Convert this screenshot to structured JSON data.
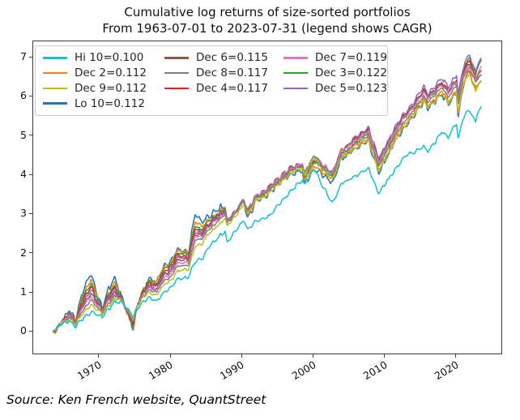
{
  "title": {
    "line1": "Cumulative log returns of size-sorted portfolios",
    "line2": "From 1963-07-01 to 2023-07-31 (legend shows CAGR)"
  },
  "source_note": "Source: Ken French website, QuantStreet",
  "axes": {
    "y_tick_labels": [
      "7",
      "6",
      "5",
      "4",
      "3",
      "2",
      "1",
      "0"
    ],
    "x_tick_labels": [
      "1970",
      "1980",
      "1990",
      "2000",
      "2010",
      "2020"
    ]
  },
  "legend": {
    "columns": [
      [
        {
          "key": "hi10",
          "label": "Hi 10=0.100"
        },
        {
          "key": "dec2",
          "label": "Dec 2=0.112"
        },
        {
          "key": "dec9",
          "label": "Dec 9=0.112"
        },
        {
          "key": "lo10",
          "label": "Lo 10=0.112"
        }
      ],
      [
        {
          "key": "dec6",
          "label": "Dec 6=0.115"
        },
        {
          "key": "dec8",
          "label": "Dec 8=0.117"
        },
        {
          "key": "dec4",
          "label": "Dec 4=0.117"
        }
      ],
      [
        {
          "key": "dec7",
          "label": "Dec 7=0.119"
        },
        {
          "key": "dec3",
          "label": "Dec 3=0.122"
        },
        {
          "key": "dec5",
          "label": "Dec 5=0.123"
        }
      ]
    ]
  },
  "chart_data": {
    "type": "line",
    "title": "Cumulative log returns of size-sorted portfolios",
    "subtitle": "From 1963-07-01 to 2023-07-31 (legend shows CAGR)",
    "xlabel": "",
    "ylabel": "",
    "x_unit": "year (monthly observations)",
    "x_start": 1963.583,
    "x_end": 2023.583,
    "xlim": [
      1960.58,
      2026.42
    ],
    "ylim": [
      -0.59,
      7.41
    ],
    "x_ticks": [
      1970,
      1980,
      1990,
      2000,
      2010,
      2020
    ],
    "y_ticks": [
      0,
      1,
      2,
      3,
      4,
      5,
      6,
      7
    ],
    "grid": false,
    "legend_position": "upper left",
    "anchor_years": [
      1963.5,
      1963.92,
      1964.5,
      1965.9,
      1966.8,
      1967.8,
      1968.9,
      1969.5,
      1970.5,
      1971.3,
      1972.2,
      1973.0,
      1973.9,
      1974.85,
      1975.5,
      1976.9,
      1978.2,
      1979.0,
      1980.2,
      1980.9,
      1982.6,
      1983.5,
      1984.5,
      1985.5,
      1987.7,
      1987.95,
      1990.3,
      1990.85,
      1992.0,
      1994.0,
      1996.0,
      1998.5,
      1998.8,
      2000.2,
      2001.0,
      2002.75,
      2004.0,
      2007.8,
      2009.2,
      2011.0,
      2013.0,
      2015.5,
      2016.1,
      2018.0,
      2018.95,
      2019.8,
      2020.12,
      2020.3,
      2021.0,
      2021.9,
      2022.75,
      2023.0,
      2023.58
    ],
    "series": [
      {
        "key": "lo10",
        "name": "Lo 10",
        "cagr": 0.112,
        "color": "#1f77b4",
        "values": [
          0,
          -0.03,
          0.13,
          0.55,
          0.28,
          1.05,
          1.5,
          1.12,
          0.55,
          1.05,
          1.35,
          1.0,
          0.52,
          0.08,
          0.7,
          1.32,
          1.3,
          1.62,
          1.8,
          2.1,
          2.02,
          3.0,
          2.76,
          2.96,
          3.22,
          2.76,
          3.3,
          2.86,
          3.3,
          3.55,
          3.9,
          4.1,
          3.78,
          4.1,
          4.05,
          3.8,
          4.4,
          4.85,
          4.0,
          4.7,
          5.25,
          5.85,
          5.68,
          6.05,
          5.78,
          6.05,
          6.1,
          5.42,
          6.28,
          6.6,
          6.18,
          6.32,
          6.38
        ]
      },
      {
        "key": "dec2",
        "name": "Dec 2",
        "cagr": 0.112,
        "color": "#ff7f0e",
        "values": [
          0,
          -0.06,
          0.13,
          0.5,
          0.25,
          0.95,
          1.35,
          1.02,
          0.52,
          0.97,
          1.22,
          0.93,
          0.5,
          0.12,
          0.71,
          1.3,
          1.28,
          1.58,
          1.77,
          2.06,
          1.99,
          2.82,
          2.64,
          2.86,
          3.16,
          2.76,
          3.32,
          2.91,
          3.35,
          3.6,
          3.95,
          4.16,
          3.85,
          4.18,
          4.12,
          3.88,
          4.47,
          4.93,
          4.08,
          4.78,
          5.33,
          5.92,
          5.76,
          6.12,
          5.86,
          6.12,
          6.17,
          5.52,
          6.33,
          6.62,
          6.2,
          6.32,
          6.38
        ]
      },
      {
        "key": "dec3",
        "name": "Dec 3",
        "cagr": 0.122,
        "color": "#2ca02c",
        "values": [
          0,
          0.0,
          0.15,
          0.48,
          0.24,
          0.88,
          1.26,
          0.96,
          0.52,
          0.93,
          1.15,
          0.9,
          0.51,
          0.16,
          0.72,
          1.27,
          1.24,
          1.52,
          1.72,
          2.0,
          1.95,
          2.72,
          2.58,
          2.82,
          3.14,
          2.77,
          3.35,
          2.97,
          3.4,
          3.65,
          4.0,
          4.22,
          3.93,
          4.28,
          4.2,
          3.96,
          4.55,
          5.05,
          4.22,
          4.92,
          5.48,
          6.08,
          5.93,
          6.3,
          6.06,
          6.33,
          6.4,
          5.8,
          6.6,
          6.95,
          6.58,
          6.75,
          6.92
        ]
      },
      {
        "key": "dec4",
        "name": "Dec 4",
        "cagr": 0.117,
        "color": "#d62728",
        "values": [
          0,
          -0.01,
          0.15,
          0.45,
          0.22,
          0.8,
          1.16,
          0.89,
          0.5,
          0.88,
          1.08,
          0.88,
          0.52,
          0.2,
          0.72,
          1.22,
          1.19,
          1.46,
          1.66,
          1.93,
          1.9,
          2.62,
          2.52,
          2.77,
          3.11,
          2.77,
          3.37,
          3.01,
          3.43,
          3.68,
          4.03,
          4.26,
          3.99,
          4.36,
          4.26,
          4.02,
          4.6,
          5.13,
          4.3,
          4.98,
          5.53,
          6.12,
          5.98,
          6.34,
          6.11,
          6.38,
          6.45,
          5.88,
          6.6,
          6.88,
          6.47,
          6.57,
          6.65
        ]
      },
      {
        "key": "dec5",
        "name": "Dec 5",
        "cagr": 0.123,
        "color": "#9467bd",
        "values": [
          0,
          0.01,
          0.16,
          0.43,
          0.21,
          0.74,
          1.08,
          0.84,
          0.5,
          0.85,
          1.03,
          0.86,
          0.54,
          0.24,
          0.71,
          1.18,
          1.15,
          1.41,
          1.61,
          1.87,
          1.86,
          2.55,
          2.48,
          2.74,
          3.09,
          2.77,
          3.38,
          3.04,
          3.45,
          3.7,
          4.05,
          4.29,
          4.03,
          4.42,
          4.3,
          4.06,
          4.63,
          5.2,
          4.38,
          5.05,
          5.6,
          6.2,
          6.06,
          6.44,
          6.22,
          6.5,
          6.58,
          6.02,
          6.72,
          7.04,
          6.64,
          6.82,
          6.97
        ]
      },
      {
        "key": "dec6",
        "name": "Dec 6",
        "cagr": 0.115,
        "color": "#8c564b",
        "values": [
          0,
          0.0,
          0.16,
          0.42,
          0.2,
          0.68,
          1.0,
          0.79,
          0.49,
          0.81,
          0.97,
          0.85,
          0.55,
          0.27,
          0.7,
          1.14,
          1.11,
          1.36,
          1.55,
          1.81,
          1.81,
          2.5,
          2.45,
          2.71,
          3.06,
          2.76,
          3.37,
          3.05,
          3.45,
          3.69,
          4.04,
          4.29,
          4.05,
          4.44,
          4.31,
          4.06,
          4.62,
          5.15,
          4.33,
          5.0,
          5.54,
          6.12,
          5.99,
          6.34,
          6.11,
          6.37,
          6.44,
          5.88,
          6.58,
          6.78,
          6.37,
          6.47,
          6.54
        ]
      },
      {
        "key": "dec7",
        "name": "Dec 7",
        "cagr": 0.119,
        "color": "#e377c2",
        "values": [
          0,
          0.01,
          0.16,
          0.4,
          0.19,
          0.62,
          0.92,
          0.73,
          0.47,
          0.76,
          0.92,
          0.83,
          0.57,
          0.31,
          0.69,
          1.1,
          1.07,
          1.3,
          1.49,
          1.74,
          1.76,
          2.44,
          2.41,
          2.67,
          3.03,
          2.75,
          3.36,
          3.05,
          3.44,
          3.67,
          4.02,
          4.28,
          4.06,
          4.46,
          4.31,
          4.04,
          4.59,
          5.1,
          4.28,
          4.95,
          5.49,
          6.07,
          5.94,
          6.29,
          6.06,
          6.32,
          6.39,
          5.84,
          6.53,
          6.76,
          6.41,
          6.58,
          6.76
        ]
      },
      {
        "key": "dec8",
        "name": "Dec 8",
        "cagr": 0.117,
        "color": "#7f7f7f",
        "values": [
          0,
          0.02,
          0.17,
          0.36,
          0.17,
          0.55,
          0.82,
          0.66,
          0.44,
          0.7,
          0.87,
          0.81,
          0.58,
          0.34,
          0.68,
          1.05,
          1.02,
          1.23,
          1.42,
          1.65,
          1.68,
          2.35,
          2.34,
          2.61,
          2.98,
          2.72,
          3.33,
          3.03,
          3.41,
          3.63,
          3.98,
          4.26,
          4.05,
          4.47,
          4.28,
          3.98,
          4.52,
          5.0,
          4.18,
          4.85,
          5.4,
          5.98,
          5.85,
          6.2,
          5.97,
          6.23,
          6.3,
          5.76,
          6.46,
          6.72,
          6.38,
          6.52,
          6.65
        ]
      },
      {
        "key": "dec9",
        "name": "Dec 9",
        "cagr": 0.112,
        "color": "#bcbd22",
        "values": [
          0,
          0.02,
          0.16,
          0.33,
          0.15,
          0.46,
          0.7,
          0.58,
          0.41,
          0.64,
          0.82,
          0.79,
          0.59,
          0.37,
          0.66,
          0.99,
          0.95,
          1.14,
          1.32,
          1.53,
          1.57,
          2.2,
          2.22,
          2.5,
          2.88,
          2.64,
          3.24,
          2.96,
          3.33,
          3.54,
          3.88,
          4.18,
          3.99,
          4.43,
          4.2,
          3.88,
          4.42,
          4.88,
          4.05,
          4.72,
          5.27,
          5.85,
          5.71,
          6.05,
          5.81,
          6.07,
          6.13,
          5.56,
          6.28,
          6.52,
          6.14,
          6.26,
          6.38
        ]
      },
      {
        "key": "hi10",
        "name": "Hi 10",
        "cagr": 0.1,
        "color": "#17becf",
        "values": [
          0,
          0.03,
          0.14,
          0.27,
          0.11,
          0.33,
          0.5,
          0.45,
          0.35,
          0.54,
          0.74,
          0.75,
          0.58,
          0.4,
          0.6,
          0.85,
          0.78,
          0.95,
          1.12,
          1.33,
          1.38,
          1.78,
          1.86,
          2.16,
          2.56,
          2.24,
          2.85,
          2.58,
          2.8,
          2.95,
          3.4,
          3.85,
          3.73,
          4.15,
          3.8,
          3.28,
          3.75,
          4.15,
          3.5,
          4.0,
          4.48,
          4.7,
          4.58,
          5.08,
          4.95,
          5.25,
          5.32,
          4.88,
          5.45,
          5.62,
          5.35,
          5.56,
          5.73
        ]
      }
    ]
  }
}
